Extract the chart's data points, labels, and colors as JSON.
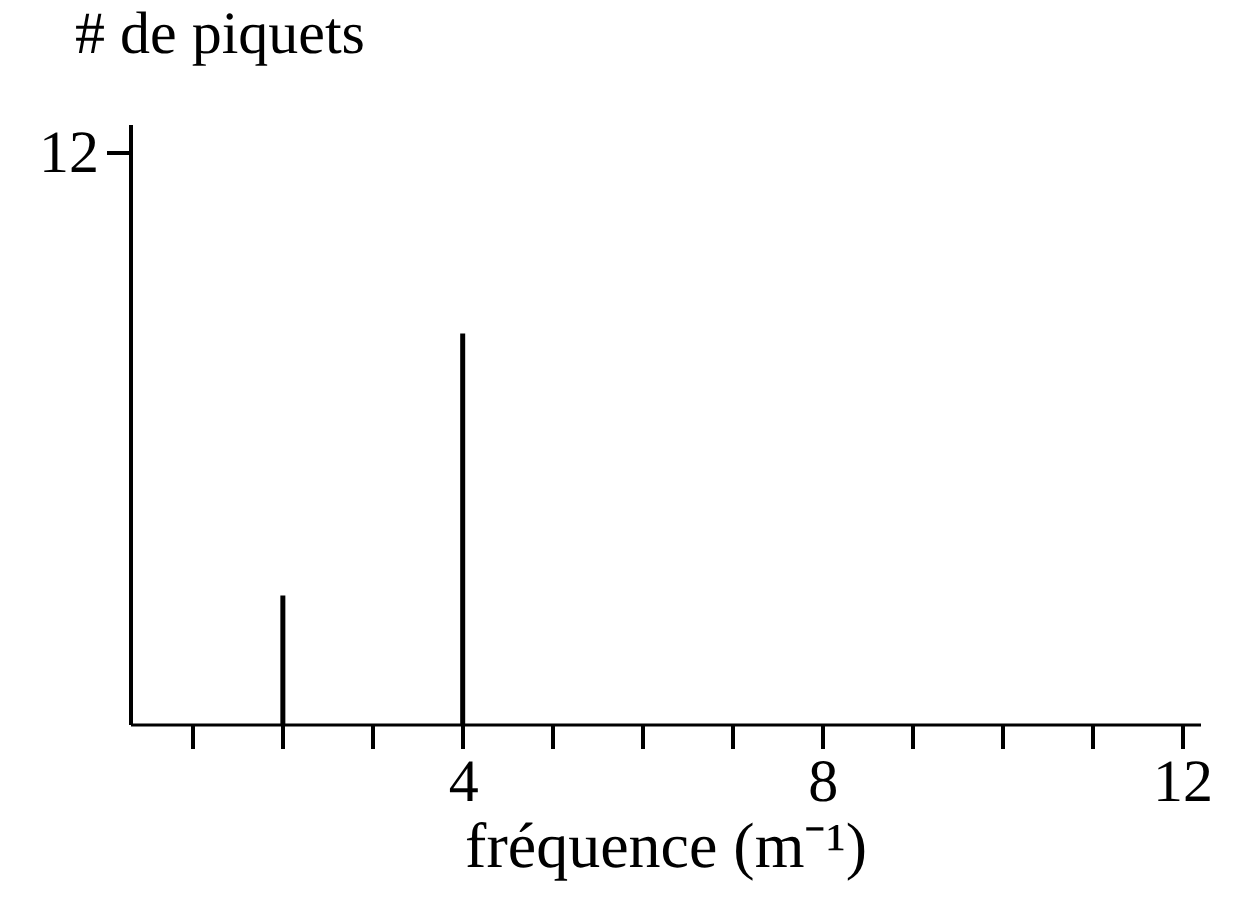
{
  "chart_data": {
    "type": "bar",
    "ylabel": "# de piquets",
    "xlabel": "fréquence (m⁻¹)",
    "x": [
      2,
      4
    ],
    "values": [
      2.7,
      8.2
    ],
    "color": "#000000",
    "xlim": [
      0.3,
      12.2
    ],
    "xticks": [
      {
        "value": 1,
        "label": null
      },
      {
        "value": 2,
        "label": null
      },
      {
        "value": 3,
        "label": null
      },
      4,
      {
        "value": 5,
        "label": null
      },
      {
        "value": 6,
        "label": null
      },
      {
        "value": 7,
        "label": null
      },
      8,
      {
        "value": 9,
        "label": null
      },
      {
        "value": 10,
        "label": null
      },
      {
        "value": 11,
        "label": null
      },
      12
    ],
    "ylim": [
      0,
      12.6
    ],
    "yticks": [
      12
    ],
    "grid": false
  }
}
